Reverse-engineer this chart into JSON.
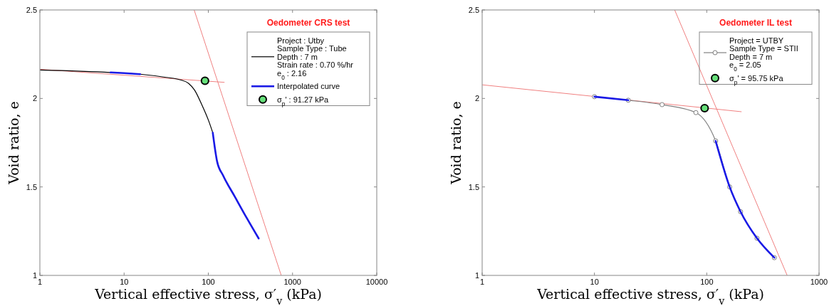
{
  "chart_data": [
    {
      "type": "line",
      "title": "Oedometer CRS test",
      "xlabel": "Vertical effective stress, σ′$_{v}$ (kPa)",
      "ylabel": "Void ratio, e",
      "log": "x",
      "grid": false,
      "legend": "top right",
      "xlim": [
        1,
        10000
      ],
      "xticks": [
        1,
        10,
        100,
        1000,
        10000
      ],
      "ylim": [
        1,
        2.5
      ],
      "yticks": [
        1,
        1.5,
        2,
        2.5
      ],
      "series": [
        {
          "color": "#f08080",
          "x": [
            1,
            154.6
          ],
          "values": [
            2.165,
            2.091
          ]
        },
        {
          "color": "#f08080",
          "x": [
            67.9,
            734
          ],
          "values": [
            2.5,
            1.0
          ]
        },
        {
          "name": "Project : Utby\nSample Type : Tube\nDepth : 7 m\nStrain rate : 0.70 %/hr\ne$_{0}$ : 2.16",
          "color": "#000000",
          "marker": "none",
          "x": [
            1,
            6.9,
            15.5,
            31.5,
            46.5,
            58.4,
            68.7,
            83.4,
            101,
            113
          ],
          "values": [
            2.161,
            2.147,
            2.137,
            2.119,
            2.105,
            2.085,
            2.047,
            1.966,
            1.873,
            1.806
          ]
        },
        {
          "name": "Interpolated curve",
          "color": "#1a1ae6",
          "marker": "none",
          "x": [
            6.9,
            10,
            15.5,
            50,
            113,
            127,
            150,
            207,
            287,
            396
          ],
          "values": [
            2.147,
            2.143,
            2.137,
            null,
            1.806,
            1.645,
            1.564,
            1.444,
            1.323,
            1.209
          ]
        },
        {
          "type": "scatter",
          "name": "σ$_{p}$' : 91.27 kPa",
          "color": "#66e07a",
          "marker": "circle",
          "x": [
            91.27
          ],
          "values": [
            2.1
          ]
        }
      ]
    },
    {
      "type": "line",
      "title": "Oedometer IL test",
      "xlabel": "Vertical effective stress, σ′$_{v}$ (kPa)",
      "ylabel": "Void ratio, e",
      "log": "x",
      "grid": false,
      "legend": "top right",
      "xlim": [
        1,
        1000
      ],
      "xticks": [
        1,
        10,
        100,
        1000
      ],
      "ylim": [
        1,
        2.5
      ],
      "yticks": [
        1,
        1.5,
        2,
        2.5
      ],
      "series": [
        {
          "color": "#f08080",
          "x": [
            1,
            203
          ],
          "values": [
            2.077,
            1.925
          ]
        },
        {
          "color": "#f08080",
          "x": [
            51.8,
            520
          ],
          "values": [
            2.5,
            1.0
          ]
        },
        {
          "name": "Project = UTBY\nSample Type = STII\nDepth = 7 m\ne$_{0}$ = 2.05",
          "color": "#808080",
          "marker": "circle",
          "x": [
            10,
            20,
            40,
            80,
            120,
            160,
            200,
            280,
            400
          ],
          "values": [
            2.01,
            1.99,
            1.965,
            1.92,
            1.76,
            1.5,
            1.36,
            1.21,
            1.1
          ]
        },
        {
          "color": "#1a1ae6",
          "marker": "none",
          "x": [
            10,
            20,
            60,
            120,
            160,
            200,
            280,
            400
          ],
          "values": [
            2.01,
            1.99,
            null,
            1.76,
            1.5,
            1.36,
            1.21,
            1.1
          ]
        },
        {
          "type": "scatter",
          "name": "σ$_{p}$' = 95.75 kPa",
          "color": "#66e07a",
          "marker": "circle",
          "x": [
            95.75
          ],
          "values": [
            1.945
          ]
        }
      ]
    }
  ]
}
